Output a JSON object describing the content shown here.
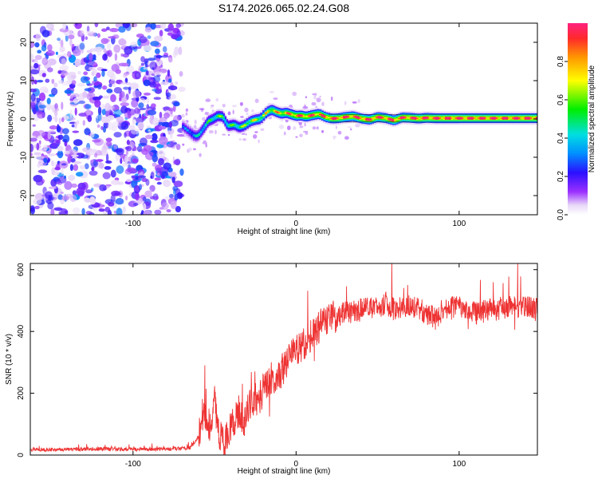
{
  "chart_data": [
    {
      "type": "heatmap",
      "title": "S174.2026.065.02.24.G08",
      "xlabel": "Height of straight line (km)",
      "ylabel": "Frequency (Hz)",
      "xlim": [
        -163,
        148
      ],
      "ylim": [
        -25,
        25
      ],
      "xticks": [
        -100,
        0,
        100
      ],
      "xtick_labels": [
        "-100",
        "0",
        "100"
      ],
      "yticks": [
        -20,
        -10,
        0,
        10,
        20
      ],
      "ytick_labels": [
        "-20",
        "-10",
        "0",
        "10",
        "20"
      ],
      "noise_region_x": [
        -163,
        -70
      ],
      "ridge": {
        "x": [
          -70,
          -66,
          -62,
          -60,
          -57,
          -54,
          -51,
          -48,
          -45,
          -42,
          -38,
          -35,
          -32,
          -28,
          -25,
          -22,
          -18,
          -15,
          -12,
          -9,
          -6,
          -3,
          0,
          3,
          6,
          10,
          14,
          18,
          22,
          26,
          30,
          35,
          40,
          45,
          50,
          55,
          60,
          65,
          70,
          75,
          80,
          85,
          90,
          100,
          110,
          120,
          130,
          140,
          148
        ],
        "y": [
          -1.8,
          -3.2,
          -4.5,
          -4.3,
          -2.6,
          -0.6,
          0,
          0.8,
          0.6,
          -1.8,
          -1.5,
          -2.2,
          -1.8,
          -0.6,
          -0.2,
          0,
          1.8,
          2.4,
          1.8,
          1.4,
          1.6,
          1.2,
          0.8,
          0.9,
          0.6,
          1.0,
          1.3,
          0.5,
          0.1,
          0.2,
          0.5,
          0.7,
          0.1,
          -0.2,
          0.5,
          0.2,
          -0.4,
          0.4,
          0.3,
          0.1,
          0.3,
          0.2,
          0.2,
          0.2,
          0.2,
          0.2,
          0.2,
          0.2,
          0.2
        ],
        "amplitude": [
          0.3,
          0.3,
          0.4,
          0.4,
          0.45,
          0.5,
          0.5,
          0.55,
          0.55,
          0.5,
          0.55,
          0.55,
          0.6,
          0.65,
          0.65,
          0.65,
          0.7,
          0.75,
          0.75,
          0.8,
          0.8,
          0.85,
          0.9,
          0.9,
          0.9,
          0.9,
          0.9,
          0.92,
          0.95,
          0.95,
          0.95,
          0.95,
          0.95,
          0.95,
          0.95,
          0.95,
          0.95,
          0.95,
          0.97,
          0.97,
          0.97,
          0.97,
          0.97,
          0.98,
          0.98,
          0.98,
          0.98,
          0.98,
          0.98
        ]
      },
      "colorbar": {
        "label": "Normalized spectral amplitude",
        "ticks": [
          0.0,
          0.2,
          0.4,
          0.6,
          0.8
        ],
        "tick_labels": [
          "0.0",
          "0.2",
          "0.4",
          "0.6",
          "0.8"
        ]
      }
    },
    {
      "type": "line",
      "xlabel": "Height of straight line (km)",
      "ylabel": "SNR (10 * v/v)",
      "xlim": [
        -163,
        148
      ],
      "ylim": [
        0,
        620
      ],
      "xticks": [
        -100,
        0,
        100
      ],
      "xtick_labels": [
        "-100",
        "0",
        "100"
      ],
      "yticks": [
        0,
        200,
        400,
        600
      ],
      "ytick_labels": [
        "0",
        "200",
        "400",
        "600"
      ],
      "series": [
        {
          "name": "SNR",
          "color": "#ee3333",
          "x": [
            -163,
            -140,
            -120,
            -100,
            -80,
            -65,
            -60,
            -57,
            -55,
            -52,
            -50,
            -48,
            -45,
            -42,
            -40,
            -37,
            -35,
            -32,
            -30,
            -27,
            -25,
            -22,
            -20,
            -18,
            -15,
            -12,
            -10,
            -8,
            -5,
            -3,
            0,
            3,
            5,
            8,
            10,
            15,
            20,
            25,
            30,
            40,
            50,
            55,
            60,
            70,
            80,
            85,
            90,
            100,
            110,
            120,
            130,
            140,
            148
          ],
          "values": [
            18,
            18,
            20,
            18,
            20,
            22,
            60,
            140,
            120,
            90,
            180,
            80,
            45,
            60,
            90,
            120,
            140,
            100,
            150,
            170,
            180,
            190,
            210,
            230,
            250,
            220,
            260,
            280,
            300,
            320,
            340,
            355,
            360,
            380,
            395,
            420,
            440,
            450,
            460,
            470,
            480,
            490,
            470,
            480,
            460,
            440,
            470,
            480,
            460,
            470,
            480,
            480,
            470
          ]
        }
      ]
    }
  ]
}
